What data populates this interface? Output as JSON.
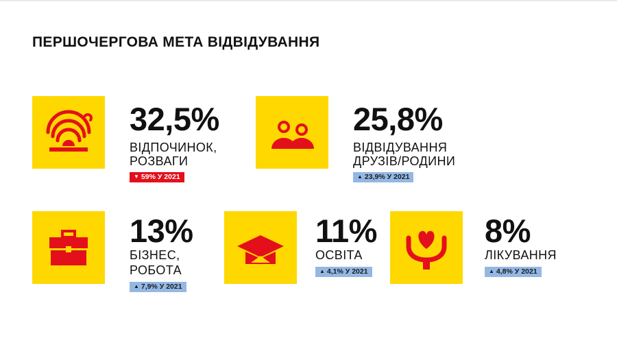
{
  "title": "ПЕРШОЧЕРГОВА МЕТА ВІДВІДУВАННЯ",
  "colors": {
    "tile": "#ffd800",
    "icon": "#e3101c",
    "badge_down": "#e3101c",
    "badge_up": "#94b8e4"
  },
  "items": [
    {
      "icon": "sunset-icon",
      "percent": "32,5%",
      "line1": "ВІДПОЧИНОК,",
      "line2": "РОЗВАГИ",
      "arrow": "▼",
      "change": "59% У 2021",
      "trend": "down"
    },
    {
      "icon": "people-icon",
      "percent": "25,8%",
      "line1": "ВІДВІДУВАННЯ",
      "line2": "ДРУЗІВ/РОДИНИ",
      "arrow": "▲",
      "change": "23,9% У 2021",
      "trend": "up"
    },
    {
      "icon": "briefcase-icon",
      "percent": "13%",
      "line1": "БІЗНЕС,",
      "line2": "РОБОТА",
      "arrow": "▲",
      "change": "7,9% У 2021",
      "trend": "up"
    },
    {
      "icon": "graduation-cap-icon",
      "percent": "11%",
      "line1": "ОСВІТА",
      "arrow": "▲",
      "change": "4,1% У 2021",
      "trend": "up"
    },
    {
      "icon": "heart-hands-icon",
      "percent": "8%",
      "line1": "ЛІКУВАННЯ",
      "arrow": "▲",
      "change": "4,8% У 2021",
      "trend": "up"
    }
  ]
}
